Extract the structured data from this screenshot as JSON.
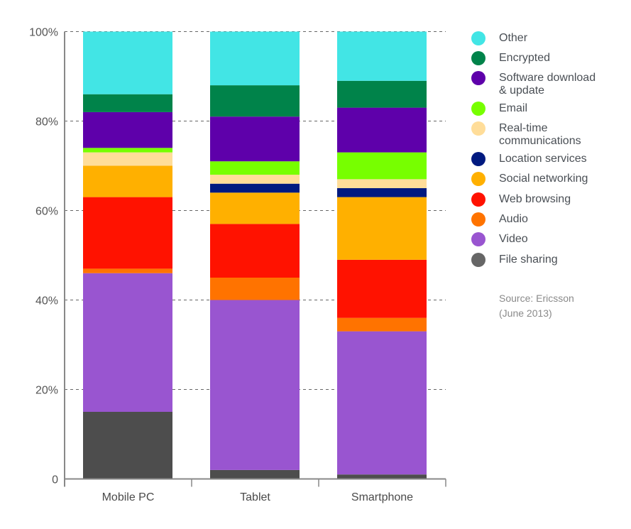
{
  "chart_data": {
    "type": "bar",
    "stacked": true,
    "percent": true,
    "title": "",
    "xlabel": "",
    "ylabel": "",
    "ylim": [
      0,
      100
    ],
    "yticks": [
      0,
      20,
      40,
      60,
      80,
      100
    ],
    "ytick_labels": [
      "0",
      "20%",
      "40%",
      "60%",
      "80%",
      "100%"
    ],
    "grid": "horizontal dashed",
    "legend_position": "right",
    "categories": [
      "Mobile PC",
      "Tablet",
      "Smartphone"
    ],
    "series": [
      {
        "name": "File sharing",
        "color": "#4d4d4d",
        "legend_color": "#666666",
        "values": [
          15,
          2,
          1
        ]
      },
      {
        "name": "Video",
        "color": "#9955d0",
        "values": [
          31,
          38,
          32
        ]
      },
      {
        "name": "Audio",
        "color": "#ff7300",
        "values": [
          1,
          5,
          3
        ]
      },
      {
        "name": "Web browsing",
        "color": "#ff1200",
        "values": [
          16,
          12,
          13
        ]
      },
      {
        "name": "Social networking",
        "color": "#ffb000",
        "values": [
          7,
          7,
          14
        ]
      },
      {
        "name": "Location services",
        "color": "#001a80",
        "values": [
          0,
          2,
          2
        ]
      },
      {
        "name": "Real-time communications",
        "color": "#ffdd99",
        "values": [
          3,
          2,
          2
        ]
      },
      {
        "name": "Email",
        "color": "#77ff00",
        "values": [
          1,
          3,
          6
        ]
      },
      {
        "name": "Software download & update",
        "color": "#5e00aa",
        "values": [
          8,
          10,
          10
        ]
      },
      {
        "name": "Encrypted",
        "color": "#00834a",
        "values": [
          4,
          7,
          6
        ]
      },
      {
        "name": "Other",
        "color": "#42e5e5",
        "values": [
          14,
          12,
          11
        ]
      }
    ]
  },
  "legend": {
    "items": [
      {
        "label": "Other",
        "color": "#42e5e5"
      },
      {
        "label": "Encrypted",
        "color": "#00834a"
      },
      {
        "label": "Software download\n& update",
        "color": "#5e00aa"
      },
      {
        "label": "Email",
        "color": "#77ff00"
      },
      {
        "label": "Real-time\ncommunications",
        "color": "#ffdd99"
      },
      {
        "label": "Location services",
        "color": "#001a80"
      },
      {
        "label": "Social networking",
        "color": "#ffb000"
      },
      {
        "label": "Web browsing",
        "color": "#ff1200"
      },
      {
        "label": "Audio",
        "color": "#ff7300"
      },
      {
        "label": "Video",
        "color": "#9955d0"
      },
      {
        "label": "File sharing",
        "color": "#666666"
      }
    ]
  },
  "source": "Source: Ericsson\n(June 2013)"
}
